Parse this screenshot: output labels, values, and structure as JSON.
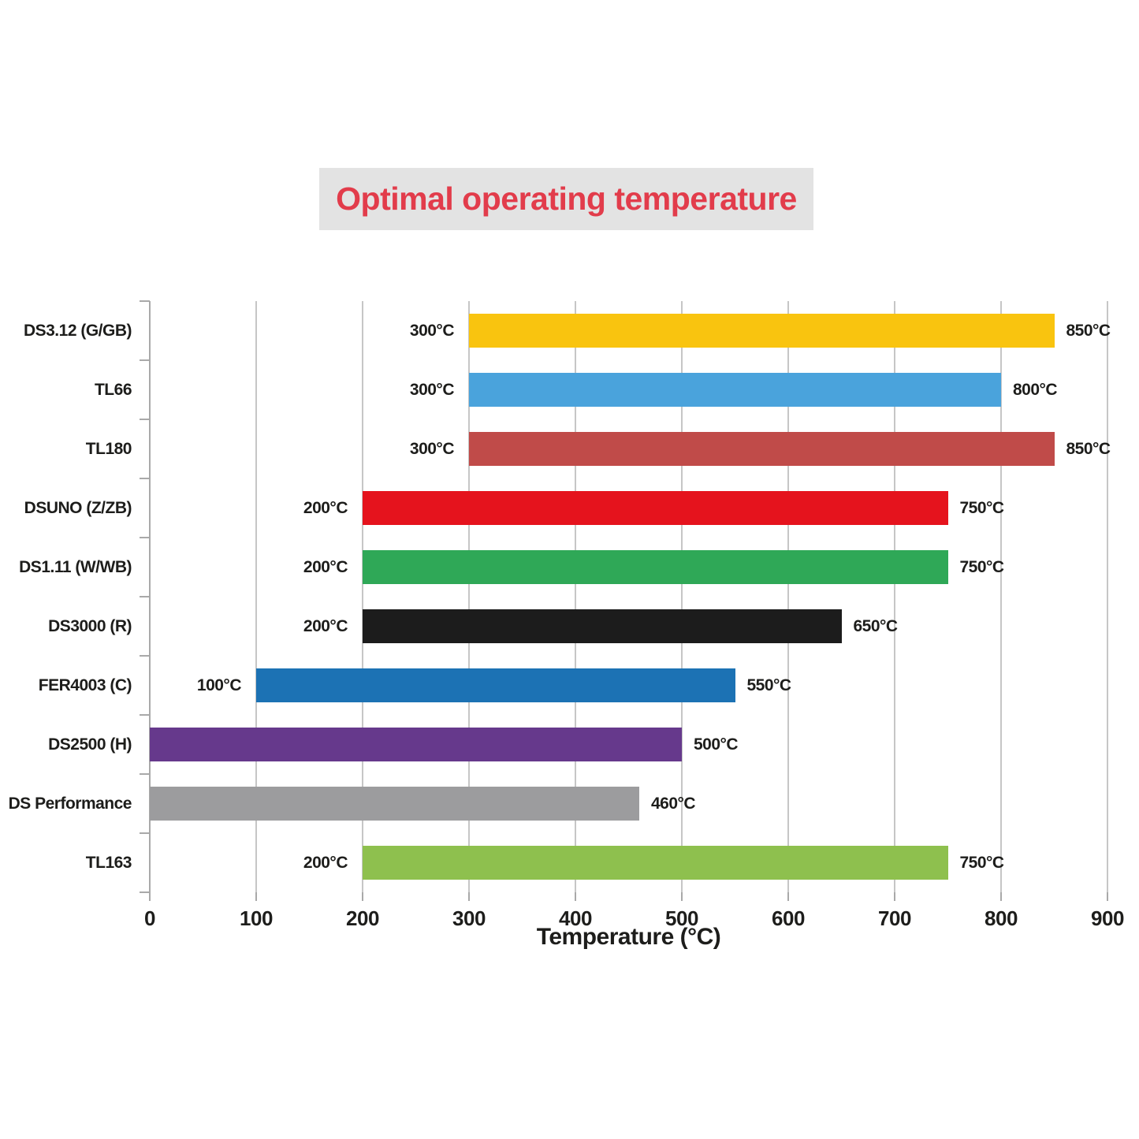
{
  "title": {
    "text": "Optimal operating temperature",
    "color": "#e23c4b",
    "background": "#e3e3e3"
  },
  "chart_data": {
    "type": "bar",
    "orientation": "horizontal",
    "title": "Optimal operating temperature",
    "xlabel": "Temperature (°C)",
    "xlim": [
      0,
      900
    ],
    "xticks": [
      0,
      100,
      200,
      300,
      400,
      500,
      600,
      700,
      800,
      900
    ],
    "grid": true,
    "legend": false,
    "bars": [
      {
        "label": "DS3.12 (G/GB)",
        "start": 300,
        "end": 850,
        "color": "#f9c40f",
        "start_label": "300°C",
        "end_label": "850°C"
      },
      {
        "label": "TL66",
        "start": 300,
        "end": 800,
        "color": "#4aa3dc",
        "start_label": "300°C",
        "end_label": "800°C"
      },
      {
        "label": "TL180",
        "start": 300,
        "end": 850,
        "color": "#c04b49",
        "start_label": "300°C",
        "end_label": "850°C"
      },
      {
        "label": "DSUNO (Z/ZB)",
        "start": 200,
        "end": 750,
        "color": "#e5131d",
        "start_label": "200°C",
        "end_label": "750°C"
      },
      {
        "label": "DS1.11 (W/WB)",
        "start": 200,
        "end": 750,
        "color": "#2fa857",
        "start_label": "200°C",
        "end_label": "750°C"
      },
      {
        "label": "DS3000 (R)",
        "start": 200,
        "end": 650,
        "color": "#1c1c1c",
        "start_label": "200°C",
        "end_label": "650°C"
      },
      {
        "label": "FER4003 (C)",
        "start": 100,
        "end": 550,
        "color": "#1c72b4",
        "start_label": "100°C",
        "end_label": "550°C"
      },
      {
        "label": "DS2500 (H)",
        "start": 0,
        "end": 500,
        "color": "#66398c",
        "start_label": null,
        "end_label": "500°C"
      },
      {
        "label": "DS Performance",
        "start": 0,
        "end": 460,
        "color": "#9c9c9e",
        "start_label": null,
        "end_label": "460°C"
      },
      {
        "label": "TL163",
        "start": 200,
        "end": 750,
        "color": "#8ec04e",
        "start_label": "200°C",
        "end_label": "750°C"
      }
    ],
    "colors": {
      "gridline": "#c6c6c6",
      "axis": "#a9a9a9",
      "text": "#1d1d1b"
    }
  }
}
